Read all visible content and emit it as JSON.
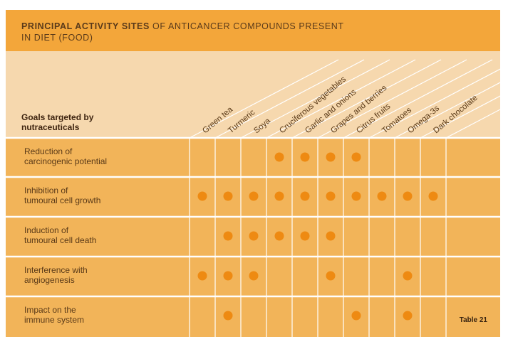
{
  "title": {
    "bold_part": "PRINCIPAL ACTIVITY SITES",
    "rest_line1": " OF ANTICANCER COMPOUNDS PRESENT",
    "line2": "IN DIET (FOOD)"
  },
  "goals_header": {
    "line1": "Goals targeted by",
    "line2": "nutraceuticals"
  },
  "columns": [
    "Green tea",
    "Turmeric",
    "Soya",
    "Cruciferous vegetables",
    "Garlic and onions",
    "Grapes and berries",
    "Citrus fruits",
    "Tomatoes",
    "Omega-3s",
    "Dark chocolate"
  ],
  "rows": [
    {
      "line1": "Reduction of",
      "line2": "carcinogenic potential",
      "dots": [
        0,
        0,
        0,
        1,
        1,
        1,
        1,
        0,
        0,
        0
      ]
    },
    {
      "line1": "Inhibition of",
      "line2": "tumoural cell growth",
      "dots": [
        1,
        1,
        1,
        1,
        1,
        1,
        1,
        1,
        1,
        1
      ]
    },
    {
      "line1": "Induction of",
      "line2": "tumoural cell death",
      "dots": [
        0,
        1,
        1,
        1,
        1,
        1,
        0,
        0,
        0,
        0
      ]
    },
    {
      "line1": "Interference with",
      "line2": "angiogenesis",
      "dots": [
        1,
        1,
        1,
        0,
        0,
        1,
        0,
        0,
        1,
        0
      ]
    },
    {
      "line1": "Impact on the",
      "line2": "immune system",
      "dots": [
        0,
        1,
        0,
        0,
        0,
        0,
        1,
        0,
        1,
        0
      ]
    }
  ],
  "table_label": "Table 21",
  "colors": {
    "title_band": "#f3a63a",
    "header_zone": "#f6d8ae",
    "row_dark": "#f2b459",
    "row_light": "#f8d9a8",
    "dot": "#ee8a12",
    "lines": "#ffffff"
  }
}
